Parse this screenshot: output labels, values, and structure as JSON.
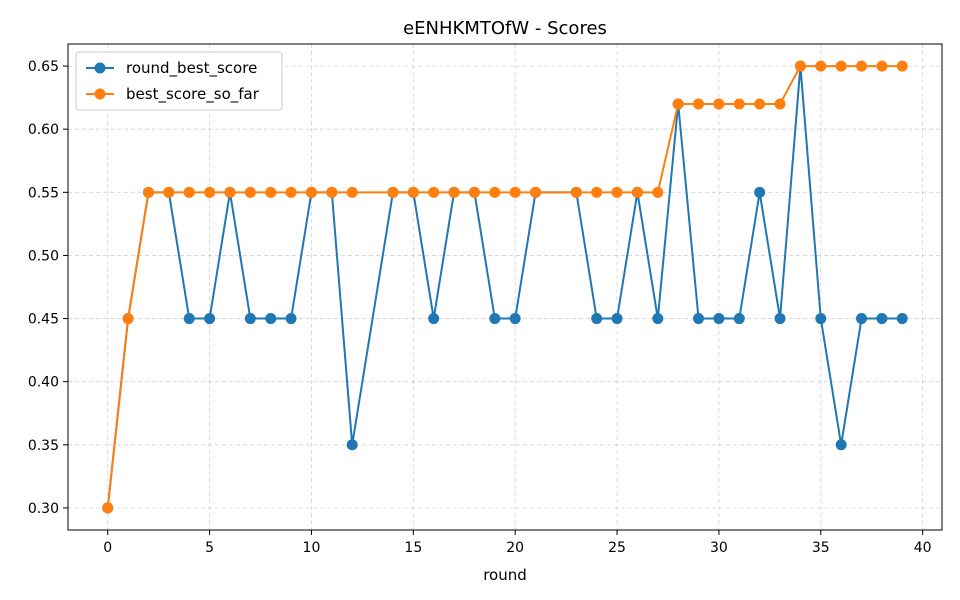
{
  "chart_data": {
    "type": "line",
    "title": "eENHKMTOfW - Scores",
    "xlabel": "round",
    "ylabel": "",
    "xlim": [
      -1.95,
      40.95
    ],
    "ylim": [
      0.2825,
      0.6675
    ],
    "xticks": [
      0,
      5,
      10,
      15,
      20,
      25,
      30,
      35,
      40
    ],
    "yticks": [
      0.3,
      0.35,
      0.4,
      0.45,
      0.5,
      0.55,
      0.6,
      0.65
    ],
    "ytick_labels": [
      "0.30",
      "0.35",
      "0.40",
      "0.45",
      "0.50",
      "0.55",
      "0.60",
      "0.65"
    ],
    "xtick_labels": [
      "0",
      "5",
      "10",
      "15",
      "20",
      "25",
      "30",
      "35",
      "40"
    ],
    "grid": true,
    "legend_position": "top-left",
    "series": [
      {
        "name": "round_best_score",
        "color": "#1f77b4",
        "x": [
          0,
          1,
          2,
          3,
          4,
          5,
          6,
          7,
          8,
          9,
          10,
          11,
          12,
          14,
          15,
          16,
          17,
          18,
          19,
          20,
          21,
          23,
          24,
          25,
          26,
          27,
          28,
          29,
          30,
          31,
          32,
          33,
          34,
          35,
          36,
          37,
          38,
          39
        ],
        "y": [
          0.3,
          0.45,
          0.55,
          0.55,
          0.45,
          0.45,
          0.55,
          0.45,
          0.45,
          0.45,
          0.55,
          0.55,
          0.35,
          0.55,
          0.55,
          0.45,
          0.55,
          0.55,
          0.45,
          0.45,
          0.55,
          0.55,
          0.45,
          0.45,
          0.55,
          0.45,
          0.62,
          0.45,
          0.45,
          0.45,
          0.55,
          0.45,
          0.65,
          0.45,
          0.35,
          0.45,
          0.45,
          0.45
        ]
      },
      {
        "name": "best_score_so_far",
        "color": "#ff7f0e",
        "x": [
          0,
          1,
          2,
          3,
          4,
          5,
          6,
          7,
          8,
          9,
          10,
          11,
          12,
          14,
          15,
          16,
          17,
          18,
          19,
          20,
          21,
          23,
          24,
          25,
          26,
          27,
          28,
          29,
          30,
          31,
          32,
          33,
          34,
          35,
          36,
          37,
          38,
          39
        ],
        "y": [
          0.3,
          0.45,
          0.55,
          0.55,
          0.55,
          0.55,
          0.55,
          0.55,
          0.55,
          0.55,
          0.55,
          0.55,
          0.55,
          0.55,
          0.55,
          0.55,
          0.55,
          0.55,
          0.55,
          0.55,
          0.55,
          0.55,
          0.55,
          0.55,
          0.55,
          0.55,
          0.62,
          0.62,
          0.62,
          0.62,
          0.62,
          0.62,
          0.65,
          0.65,
          0.65,
          0.65,
          0.65,
          0.65
        ]
      }
    ]
  }
}
